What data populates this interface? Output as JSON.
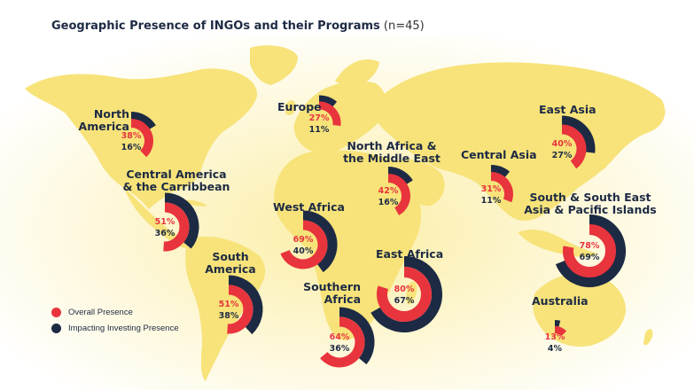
{
  "title": "Geographic Presence of INGOs and their Programs",
  "subtitle": "(n=45)",
  "colors": {
    "overall": "#e8343d",
    "impact": "#1d2a44",
    "map": "#f7e37a",
    "background": "#ffffff"
  },
  "legend": {
    "overall": "Overall Presence",
    "impact": "Impacting Investing Presence"
  },
  "chart_data": {
    "type": "radial-bar",
    "title": "Geographic Presence of INGOs and their Programs (n=45)",
    "series": [
      {
        "name": "Overall Presence",
        "color": "#e8343d"
      },
      {
        "name": "Impacting Investing Presence",
        "color": "#1d2a44"
      }
    ],
    "regions": [
      {
        "name": "North America",
        "overall": 38,
        "impact": 16,
        "overall_label": "38%",
        "impact_label": "16%"
      },
      {
        "name": "Central America & the Carribbean",
        "overall": 51,
        "impact": 36,
        "overall_label": "51%",
        "impact_label": "36%"
      },
      {
        "name": "South America",
        "overall": 51,
        "impact": 38,
        "overall_label": "51%",
        "impact_label": "38%"
      },
      {
        "name": "Europe",
        "overall": 27,
        "impact": 11,
        "overall_label": "27%",
        "impact_label": "11%"
      },
      {
        "name": "North Africa & the Middle East",
        "overall": 42,
        "impact": 16,
        "overall_label": "42%",
        "impact_label": "16%"
      },
      {
        "name": "West Africa",
        "overall": 69,
        "impact": 40,
        "overall_label": "69%",
        "impact_label": "40%"
      },
      {
        "name": "East Africa",
        "overall": 80,
        "impact": 67,
        "overall_label": "80%",
        "impact_label": "67%"
      },
      {
        "name": "Southern Africa",
        "overall": 64,
        "impact": 36,
        "overall_label": "64%",
        "impact_label": "36%"
      },
      {
        "name": "Central Asia",
        "overall": 31,
        "impact": 11,
        "overall_label": "31%",
        "impact_label": "11%"
      },
      {
        "name": "East Asia",
        "overall": 40,
        "impact": 27,
        "overall_label": "40%",
        "impact_label": "27%"
      },
      {
        "name": "South & South East Asia & Pacific Islands",
        "overall": 78,
        "impact": 69,
        "overall_label": "78%",
        "impact_label": "69%"
      },
      {
        "name": "Australia",
        "overall": 13,
        "impact": 4,
        "overall_label": "13%",
        "impact_label": "4%"
      }
    ]
  },
  "region_labels": {
    "north_america": {
      "line1": "North",
      "line2": "America"
    },
    "central_america": {
      "line1": "Central America",
      "line2": "& the Carribbean"
    },
    "south_america": {
      "line1": "South",
      "line2": "America"
    },
    "europe": {
      "line1": "Europe"
    },
    "north_africa": {
      "line1": "North Africa &",
      "line2": "the Middle East"
    },
    "west_africa": {
      "line1": "West Africa"
    },
    "east_africa": {
      "line1": "East Africa"
    },
    "southern_africa": {
      "line1": "Southern",
      "line2": "Africa"
    },
    "central_asia": {
      "line1": "Central Asia"
    },
    "east_asia": {
      "line1": "East Asia"
    },
    "south_asia": {
      "line1": "South & South East",
      "line2": "Asia & Pacific Islands"
    },
    "australia": {
      "line1": "Australia"
    }
  }
}
